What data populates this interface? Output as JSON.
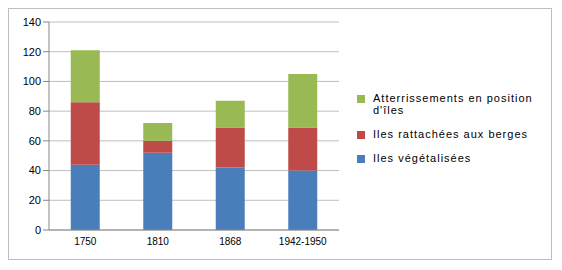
{
  "chart_data": {
    "type": "bar",
    "stacked": true,
    "categories": [
      "1750",
      "1810",
      "1868",
      "1942-1950"
    ],
    "series": [
      {
        "name": "Iles végétalisées",
        "color": "#4a7ebb",
        "values": [
          44,
          52,
          42,
          40
        ]
      },
      {
        "name": "Iles rattachées aux berges",
        "color": "#be4b48",
        "values": [
          42,
          8,
          27,
          29
        ]
      },
      {
        "name": "Atterrissements en position d'îles",
        "color": "#98b954",
        "values": [
          35,
          12,
          18,
          36
        ]
      }
    ],
    "ylim": [
      0,
      140
    ],
    "yticks": [
      0,
      20,
      40,
      60,
      80,
      100,
      120,
      140
    ],
    "grid": true,
    "legend": "right"
  }
}
